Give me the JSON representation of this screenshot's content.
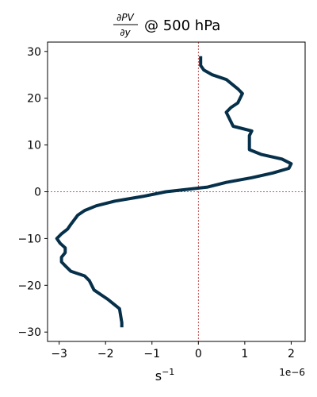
{
  "chart_data": {
    "type": "line",
    "title": {
      "numerator": "∂PV",
      "denominator": "∂y",
      "suffix": "@ 500 hPa"
    },
    "xlabel": {
      "base": "s",
      "exponent": "−1"
    },
    "x_offset_label": "1e−6",
    "ylabel": "",
    "xlim": [
      -3.25,
      2.3
    ],
    "ylim": [
      -32,
      32
    ],
    "x_ticks": [
      -3,
      -2,
      -1,
      0,
      1,
      2
    ],
    "x_tick_labels": [
      "−3",
      "−2",
      "−1",
      "0",
      "1",
      "2"
    ],
    "y_ticks": [
      -30,
      -20,
      -10,
      0,
      10,
      20,
      30
    ],
    "y_tick_labels": [
      "−30",
      "−20",
      "−10",
      "0",
      "10",
      "20",
      "30"
    ],
    "reference_lines": {
      "x": 0,
      "y": 0,
      "color": "#b22222",
      "style": "dotted"
    },
    "series": [
      {
        "color": "#06304a",
        "x": [
          -1.65,
          -1.65,
          -1.7,
          -1.95,
          -2.25,
          -2.35,
          -2.45,
          -2.75,
          -2.85,
          -2.95,
          -2.95,
          -2.87,
          -2.87,
          -2.98,
          -3.05,
          -2.95,
          -2.82,
          -2.75,
          -2.6,
          -2.45,
          -2.2,
          -1.8,
          -1.2,
          -0.7,
          0.2,
          0.6,
          1.15,
          1.6,
          1.95,
          2.0,
          1.8,
          1.35,
          1.1,
          1.1,
          1.15,
          0.75,
          0.6,
          0.7,
          0.85,
          0.95,
          0.85,
          0.6,
          0.3,
          0.12,
          0.05,
          0.05
        ],
        "y": [
          -29,
          -28,
          -25,
          -23,
          -21,
          -19,
          -18,
          -17,
          -16,
          -15,
          -14,
          -13,
          -12,
          -11,
          -10,
          -9,
          -8,
          -7,
          -5,
          -4,
          -3,
          -2,
          -1,
          0,
          1,
          2,
          3,
          4,
          5,
          6,
          7,
          8,
          9,
          12,
          13,
          14,
          17,
          18,
          19,
          21,
          22,
          24,
          25,
          26,
          27,
          29
        ]
      }
    ]
  }
}
